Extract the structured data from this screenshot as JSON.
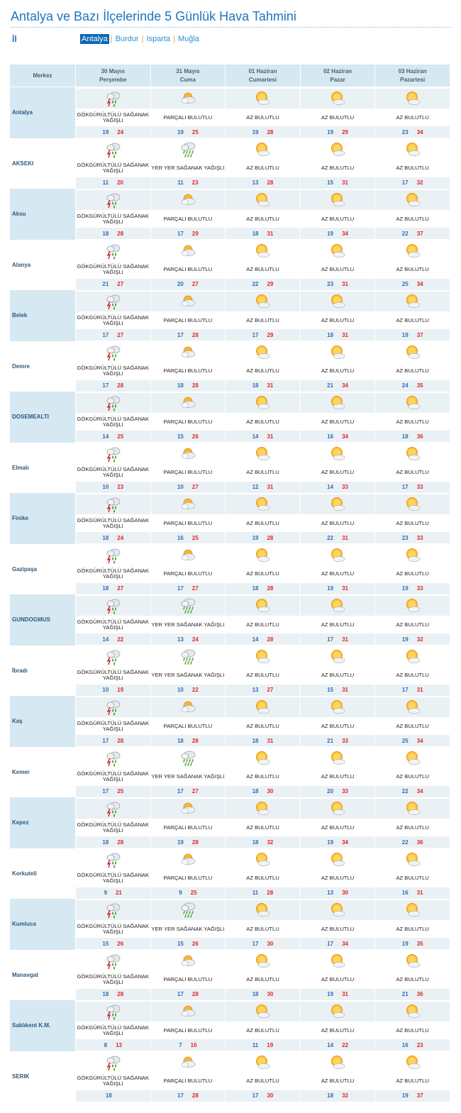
{
  "page_title": "Antalya ve Bazı İlçelerinde 5 Günlük Hava Tahmini",
  "province_label": "İl",
  "provinces": [
    "Antalya",
    "Burdur",
    "Isparta",
    "Muğla"
  ],
  "active_province": "Antalya",
  "header": {
    "merkez": "Merkez",
    "days": [
      {
        "date": "30 Mayıs",
        "weekday": "Perşembe"
      },
      {
        "date": "31 Mayıs",
        "weekday": "Cuma"
      },
      {
        "date": "01 Haziran",
        "weekday": "Cumartesi"
      },
      {
        "date": "02 Haziran",
        "weekday": "Pazar"
      },
      {
        "date": "03 Haziran",
        "weekday": "Pazartesi"
      }
    ]
  },
  "conditions": {
    "storm": "GÖKGÜRÜLTÜLÜ SAĞANAK YAĞIŞLI",
    "partly": "PARÇALI BULUTLU",
    "showers": "YER YER SAĞANAK YAĞIŞLI",
    "few": "AZ BULUTLU"
  },
  "rows": [
    {
      "city": "Antalya",
      "days": [
        [
          "storm",
          "19",
          "24"
        ],
        [
          "partly",
          "19",
          "25"
        ],
        [
          "few",
          "19",
          "28"
        ],
        [
          "few",
          "19",
          "29"
        ],
        [
          "few",
          "23",
          "34"
        ]
      ]
    },
    {
      "city": "AKSEKI",
      "days": [
        [
          "storm",
          "11",
          "20"
        ],
        [
          "showers",
          "11",
          "23"
        ],
        [
          "few",
          "13",
          "28"
        ],
        [
          "few",
          "15",
          "31"
        ],
        [
          "few",
          "17",
          "32"
        ]
      ]
    },
    {
      "city": "Aksu",
      "days": [
        [
          "storm",
          "18",
          "28"
        ],
        [
          "partly",
          "17",
          "29"
        ],
        [
          "few",
          "18",
          "31"
        ],
        [
          "few",
          "19",
          "34"
        ],
        [
          "few",
          "22",
          "37"
        ]
      ]
    },
    {
      "city": "Alanya",
      "days": [
        [
          "storm",
          "21",
          "27"
        ],
        [
          "partly",
          "20",
          "27"
        ],
        [
          "few",
          "22",
          "29"
        ],
        [
          "few",
          "23",
          "31"
        ],
        [
          "few",
          "25",
          "34"
        ]
      ]
    },
    {
      "city": "Belek",
      "days": [
        [
          "storm",
          "17",
          "27"
        ],
        [
          "partly",
          "17",
          "28"
        ],
        [
          "few",
          "17",
          "29"
        ],
        [
          "few",
          "18",
          "31"
        ],
        [
          "few",
          "19",
          "37"
        ]
      ]
    },
    {
      "city": "Demre",
      "days": [
        [
          "storm",
          "17",
          "28"
        ],
        [
          "partly",
          "18",
          "28"
        ],
        [
          "few",
          "18",
          "31"
        ],
        [
          "few",
          "21",
          "34"
        ],
        [
          "few",
          "24",
          "35"
        ]
      ]
    },
    {
      "city": "DOSEMEALTI",
      "days": [
        [
          "storm",
          "14",
          "25"
        ],
        [
          "partly",
          "15",
          "26"
        ],
        [
          "few",
          "14",
          "31"
        ],
        [
          "few",
          "16",
          "34"
        ],
        [
          "few",
          "18",
          "36"
        ]
      ]
    },
    {
      "city": "Elmalı",
      "days": [
        [
          "storm",
          "10",
          "23"
        ],
        [
          "partly",
          "10",
          "27"
        ],
        [
          "few",
          "12",
          "31"
        ],
        [
          "few",
          "14",
          "33"
        ],
        [
          "few",
          "17",
          "33"
        ]
      ]
    },
    {
      "city": "Finike",
      "days": [
        [
          "storm",
          "18",
          "24"
        ],
        [
          "partly",
          "16",
          "25"
        ],
        [
          "few",
          "19",
          "28"
        ],
        [
          "few",
          "22",
          "31"
        ],
        [
          "few",
          "23",
          "33"
        ]
      ]
    },
    {
      "city": "Gazipaşa",
      "days": [
        [
          "storm",
          "18",
          "27"
        ],
        [
          "partly",
          "17",
          "27"
        ],
        [
          "few",
          "18",
          "28"
        ],
        [
          "few",
          "19",
          "31"
        ],
        [
          "few",
          "19",
          "33"
        ]
      ]
    },
    {
      "city": "GUNDOGMUS",
      "days": [
        [
          "storm",
          "14",
          "22"
        ],
        [
          "showers",
          "13",
          "24"
        ],
        [
          "few",
          "14",
          "28"
        ],
        [
          "few",
          "17",
          "31"
        ],
        [
          "few",
          "19",
          "32"
        ]
      ]
    },
    {
      "city": "İbradı",
      "days": [
        [
          "storm",
          "10",
          "19"
        ],
        [
          "showers",
          "10",
          "22"
        ],
        [
          "few",
          "13",
          "27"
        ],
        [
          "few",
          "15",
          "31"
        ],
        [
          "few",
          "17",
          "31"
        ]
      ]
    },
    {
      "city": "Kaş",
      "days": [
        [
          "storm",
          "17",
          "28"
        ],
        [
          "partly",
          "18",
          "28"
        ],
        [
          "few",
          "18",
          "31"
        ],
        [
          "few",
          "21",
          "33"
        ],
        [
          "few",
          "25",
          "34"
        ]
      ]
    },
    {
      "city": "Kemer",
      "days": [
        [
          "storm",
          "17",
          "25"
        ],
        [
          "showers",
          "17",
          "27"
        ],
        [
          "few",
          "18",
          "30"
        ],
        [
          "few",
          "20",
          "33"
        ],
        [
          "few",
          "22",
          "34"
        ]
      ]
    },
    {
      "city": "Kepez",
      "days": [
        [
          "storm",
          "18",
          "28"
        ],
        [
          "partly",
          "19",
          "28"
        ],
        [
          "few",
          "18",
          "32"
        ],
        [
          "few",
          "19",
          "34"
        ],
        [
          "few",
          "22",
          "36"
        ]
      ]
    },
    {
      "city": "Korkuteli",
      "days": [
        [
          "storm",
          "9",
          "21"
        ],
        [
          "partly",
          "9",
          "25"
        ],
        [
          "few",
          "11",
          "28"
        ],
        [
          "few",
          "13",
          "30"
        ],
        [
          "few",
          "16",
          "31"
        ]
      ]
    },
    {
      "city": "Kumluca",
      "days": [
        [
          "storm",
          "15",
          "26"
        ],
        [
          "showers",
          "15",
          "26"
        ],
        [
          "few",
          "17",
          "30"
        ],
        [
          "few",
          "17",
          "34"
        ],
        [
          "few",
          "19",
          "35"
        ]
      ]
    },
    {
      "city": "Manavgat",
      "days": [
        [
          "storm",
          "18",
          "28"
        ],
        [
          "partly",
          "17",
          "28"
        ],
        [
          "few",
          "18",
          "30"
        ],
        [
          "few",
          "19",
          "31"
        ],
        [
          "few",
          "21",
          "36"
        ]
      ]
    },
    {
      "city": "Saklıkent K.M.",
      "days": [
        [
          "storm",
          "8",
          "13"
        ],
        [
          "partly",
          "7",
          "16"
        ],
        [
          "few",
          "11",
          "19"
        ],
        [
          "few",
          "14",
          "22"
        ],
        [
          "few",
          "16",
          "23"
        ]
      ]
    },
    {
      "city": "SERIK",
      "days": [
        [
          "storm",
          "18",
          ""
        ],
        [
          "partly",
          "17",
          "28"
        ],
        [
          "few",
          "17",
          "30"
        ],
        [
          "few",
          "18",
          "32"
        ],
        [
          "few",
          "19",
          "37"
        ]
      ]
    }
  ]
}
